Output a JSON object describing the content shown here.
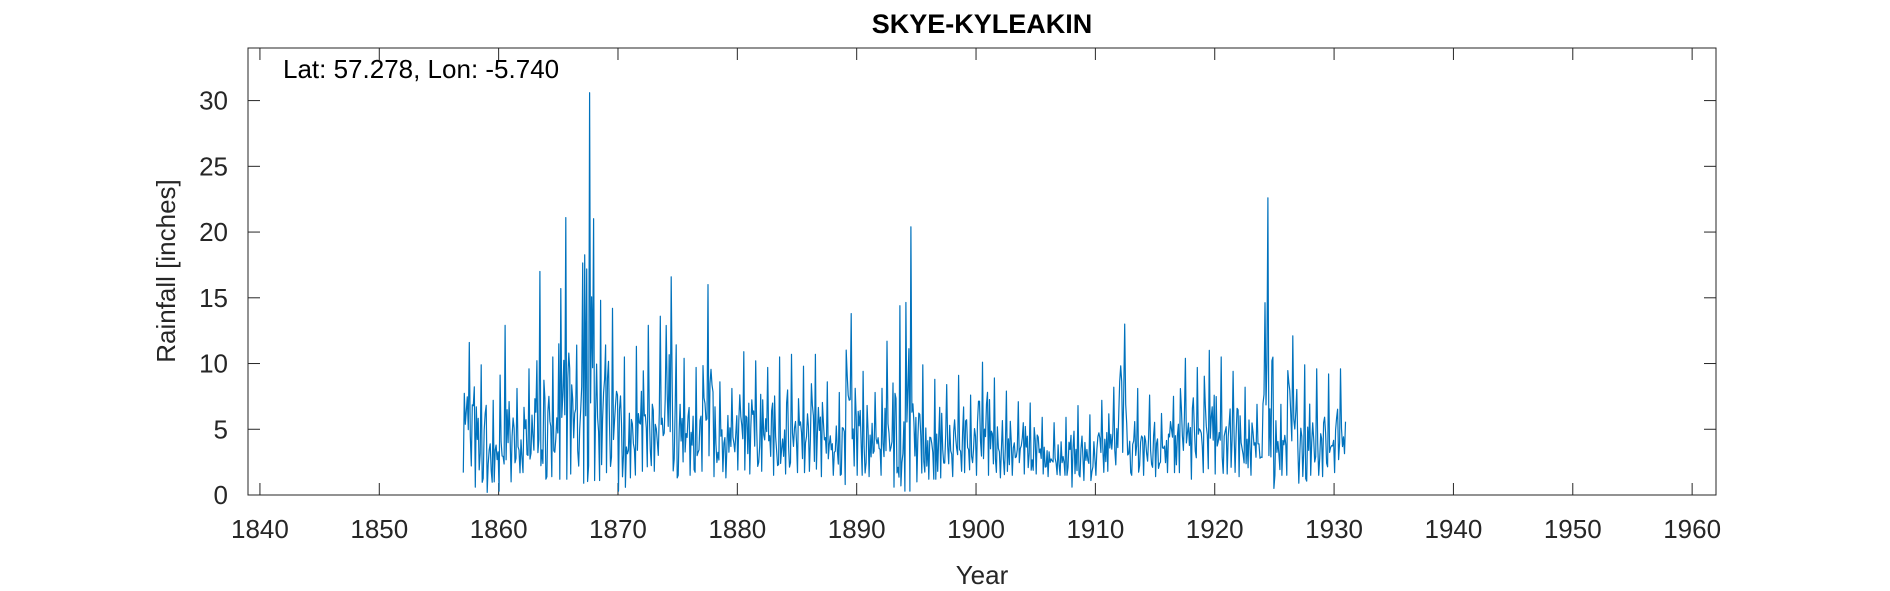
{
  "chart_data": {
    "type": "line",
    "title": "SKYE-KYLEAKIN",
    "xlabel": "Year",
    "ylabel": "Rainfall [inches]",
    "annotation": "Lat: 57.278, Lon: -5.740",
    "xlim": [
      1839,
      1962
    ],
    "ylim": [
      0,
      34
    ],
    "xticks": [
      1840,
      1850,
      1860,
      1870,
      1880,
      1890,
      1900,
      1910,
      1920,
      1930,
      1940,
      1950,
      1960
    ],
    "yticks": [
      0,
      5,
      10,
      15,
      20,
      25,
      30
    ],
    "grid": false,
    "line_color": "#0072BD",
    "series": [
      {
        "x": [
          1857.5,
          1858.5,
          1859.5,
          1860.5,
          1861.5,
          1862.5,
          1863.4,
          1864.5,
          1865.6,
          1866.5,
          1867.6,
          1868.5,
          1869.5,
          1870.5,
          1871.5,
          1872.5,
          1873.5,
          1874.4,
          1875.5,
          1876.5,
          1877.5,
          1878.5,
          1879.5,
          1880.5,
          1881.5,
          1882.5,
          1883.5,
          1884.5,
          1885.5,
          1886.5,
          1887.5,
          1888.5,
          1889.5,
          1890.5,
          1891.5,
          1892.5,
          1893.6,
          1894.5,
          1895.5,
          1896.5,
          1897.5,
          1898.5,
          1899.5,
          1900.5,
          1901.5,
          1902.5,
          1903.5,
          1904.5,
          1905.5,
          1906.5,
          1907.5,
          1908.5,
          1909.5,
          1910.5,
          1911.5,
          1912.4,
          1913.5,
          1914.5,
          1915.5,
          1916.5,
          1917.5,
          1918.5,
          1919.5,
          1920.5,
          1921.5,
          1922.5,
          1923.5,
          1924.4,
          1925.5,
          1926.5,
          1927.5,
          1928.5,
          1929.5,
          1930.5
        ],
        "max": [
          11.6,
          9.9,
          7.2,
          12.9,
          8.1,
          9.6,
          17.0,
          10.5,
          21.1,
          11.4,
          30.6,
          14.8,
          14.2,
          10.5,
          11.3,
          12.9,
          13.6,
          16.6,
          10.4,
          9.7,
          16.0,
          8.6,
          8.1,
          10.9,
          10.2,
          9.7,
          10.5,
          10.7,
          9.8,
          10.7,
          8.6,
          7.8,
          13.8,
          9.4,
          7.8,
          11.7,
          14.4,
          20.4,
          9.9,
          8.8,
          8.4,
          9.1,
          7.6,
          10.1,
          8.9,
          7.9,
          7.1,
          7.0,
          5.9,
          5.5,
          5.9,
          6.8,
          6.1,
          7.2,
          8.2,
          13.0,
          8.1,
          7.6,
          6.2,
          7.5,
          10.4,
          9.7,
          11.0,
          10.5,
          9.4,
          8.2,
          6.9,
          22.6,
          6.9,
          12.1,
          9.9,
          9.6,
          9.2,
          9.6
        ],
        "min": [
          1.7,
          0.6,
          0.2,
          0.3,
          1.0,
          1.7,
          1.2,
          1.4,
          1.2,
          1.6,
          0.9,
          1.1,
          1.7,
          0.3,
          1.3,
          1.8,
          1.8,
          1.3,
          1.5,
          1.5,
          1.8,
          1.4,
          1.3,
          1.9,
          1.6,
          1.8,
          1.5,
          1.6,
          1.7,
          1.8,
          1.4,
          1.5,
          0.8,
          1.5,
          1.4,
          1.5,
          0.6,
          0.3,
          1.0,
          1.2,
          1.3,
          1.4,
          1.7,
          1.5,
          1.5,
          1.3,
          1.5,
          1.6,
          1.6,
          1.4,
          1.5,
          0.6,
          1.1,
          1.5,
          1.8,
          1.7,
          1.5,
          1.5,
          1.4,
          1.7,
          1.7,
          1.2,
          1.7,
          1.6,
          1.6,
          1.4,
          1.5,
          0.5,
          1.5,
          1.5,
          0.9,
          1.5,
          1.4,
          1.7
        ]
      }
    ]
  }
}
